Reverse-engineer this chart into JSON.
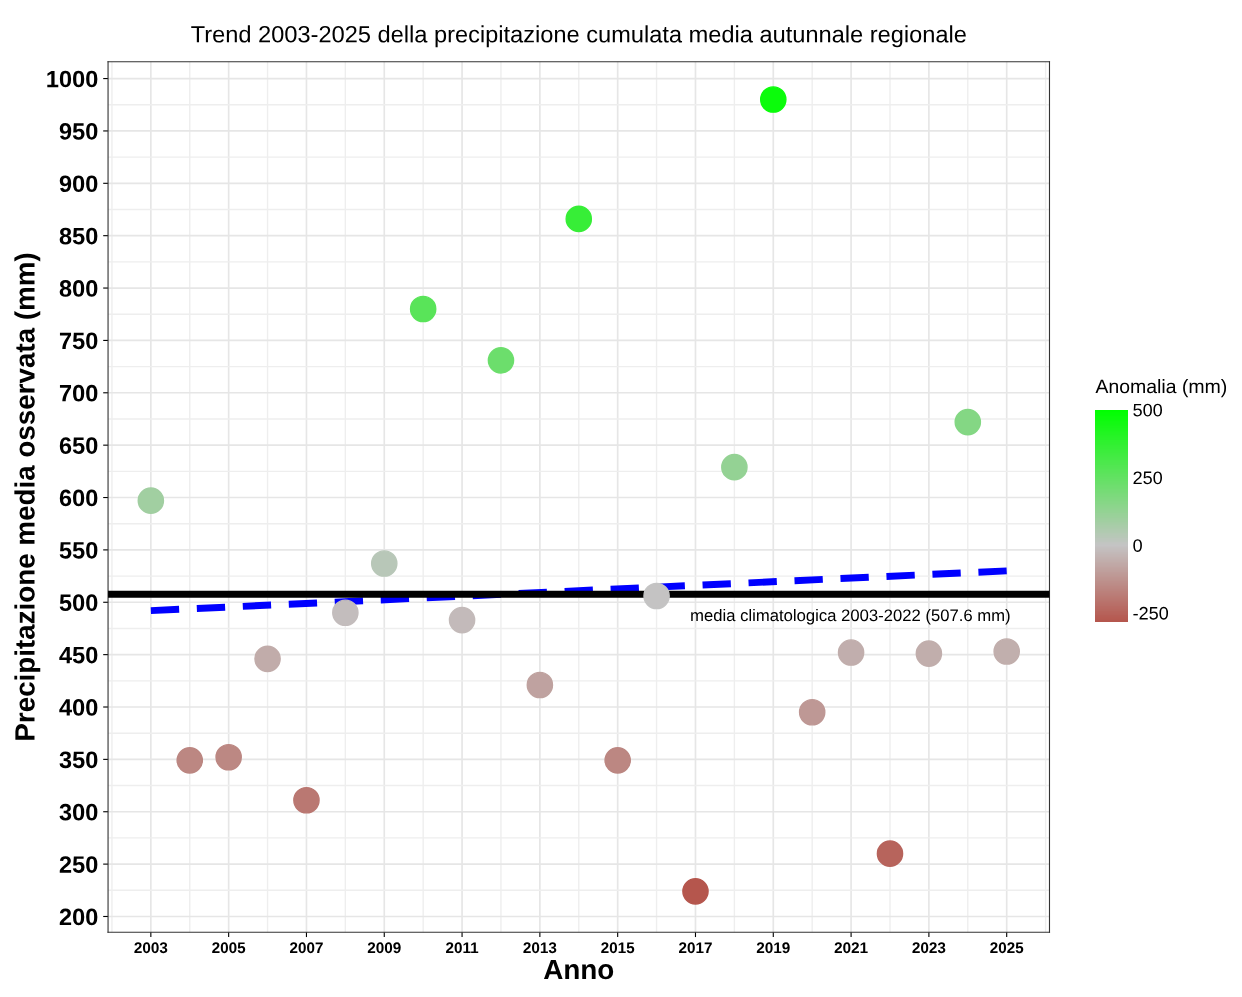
{
  "chart_data": {
    "type": "scatter",
    "title": "Trend 2003-2025 della precipitazione cumulata media autunnale regionale",
    "xlabel": "Anno",
    "ylabel": "Precipitazione media osservata (mm)",
    "clabel": "Anomalia (mm)",
    "x": [
      2003,
      2004,
      2005,
      2006,
      2007,
      2008,
      2009,
      2010,
      2011,
      2012,
      2013,
      2014,
      2015,
      2016,
      2017,
      2018,
      2019,
      2020,
      2021,
      2022,
      2023,
      2024,
      2025
    ],
    "series": [
      {
        "colors": [
          "#a1cfa1",
          "#bc8782",
          "#bc8883",
          "#c1acaa",
          "#ba7872",
          "#c3bdbd",
          "#b8c7b8",
          "#59e459",
          "#c3baba",
          "#6cde6c",
          "#bfa2a0",
          "#37ee37",
          "#bc8782",
          "#c4c3c3",
          "#b5564d",
          "#94d294",
          "#0bfc0b",
          "#be9895",
          "#c1aead",
          "#b7645c",
          "#c1aeac",
          "#84d784",
          "#c1afad"
        ],
        "values": [
          597,
          349,
          352,
          446,
          311,
          490,
          537,
          780,
          483,
          731,
          421,
          866,
          349,
          506,
          224,
          629,
          980,
          395,
          452,
          260,
          451,
          672,
          453
        ],
        "cvalues": [
          89.4,
          -158.6,
          -155.6,
          -61.6,
          -196.6,
          -17.6,
          29.4,
          272.4,
          -24.6,
          223.4,
          -86.6,
          358.4,
          -158.6,
          -1.6,
          -283.6,
          121.4,
          472.4,
          -112.6,
          -55.6,
          -247.6,
          -56.6,
          164.4,
          -54.6
        ],
        "marker": "circle"
      },
      {
        "type": "line",
        "x": [
          2003,
          2025
        ],
        "values": [
          492,
          530
        ],
        "color": "#0000ff",
        "line_style": "dashed",
        "marker": "none"
      }
    ],
    "ref_lines": [
      {
        "axis": "y",
        "value": 507.6,
        "label": "media climatologica 2003-2022 (507.6 mm)",
        "color": "#000000",
        "line_style": "solid"
      }
    ],
    "xlim": [
      2001.9,
      2026.1
    ],
    "ylim": [
      185,
      1016
    ],
    "xticks": [
      2003,
      2005,
      2007,
      2009,
      2011,
      2013,
      2015,
      2017,
      2019,
      2021,
      2023,
      2025
    ],
    "yticks": [
      200,
      250,
      300,
      350,
      400,
      450,
      500,
      550,
      600,
      650,
      700,
      750,
      800,
      850,
      900,
      950,
      1000
    ],
    "clim": [
      -284,
      500
    ],
    "cticks": [
      -250,
      0,
      250,
      500
    ],
    "grid": true,
    "legend": false
  }
}
